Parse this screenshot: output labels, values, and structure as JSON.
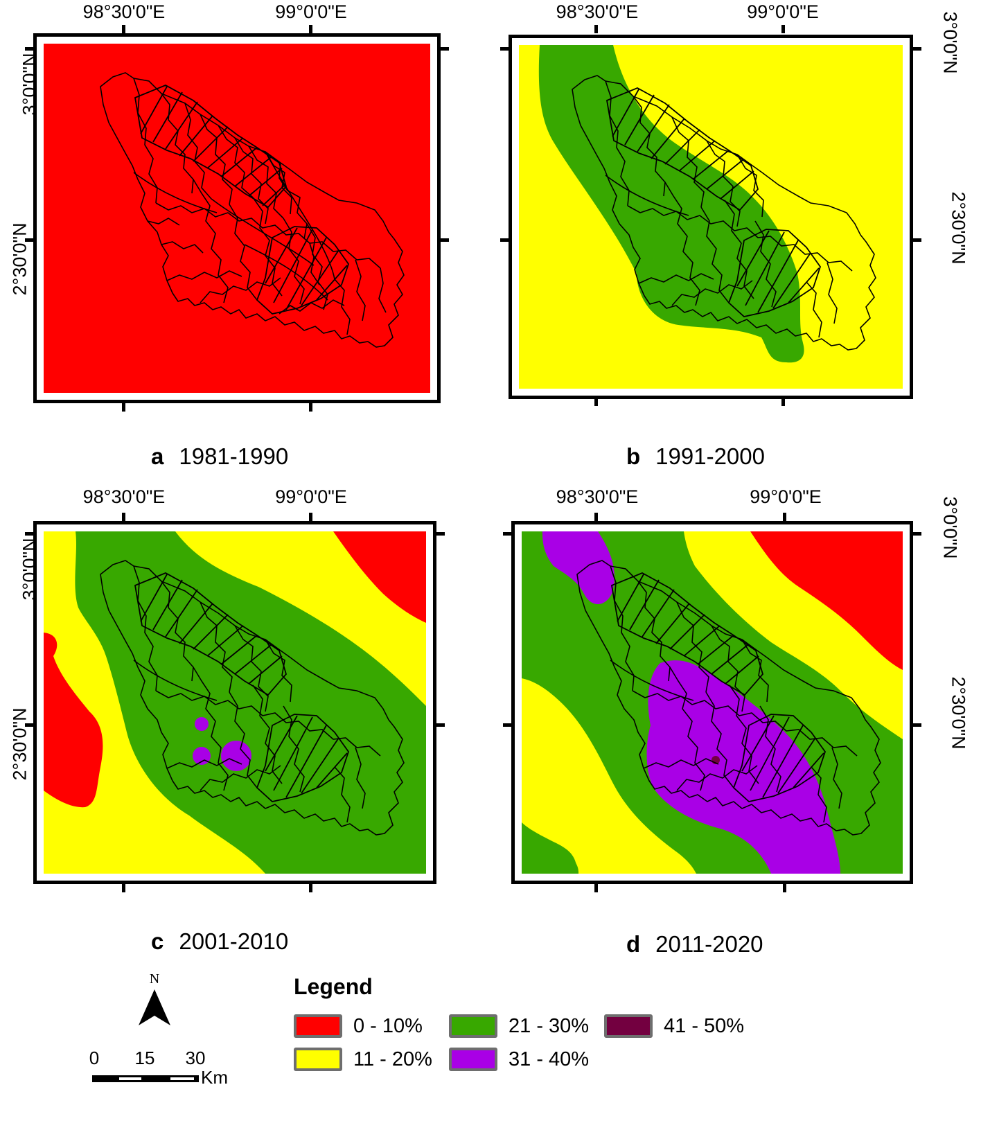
{
  "colors": {
    "class_0_10": "#ff0000",
    "class_11_20": "#ffff00",
    "class_21_30": "#38a800",
    "class_31_40": "#a900e6",
    "class_41_50": "#730040"
  },
  "axes": {
    "lon_left": "98°30'0\"E",
    "lon_right": "99°0'0\"E",
    "lat_top": "3°0'0\"N",
    "lat_bottom": "2°30'0\"N"
  },
  "panels": [
    {
      "letter": "a",
      "period": "1981-1990"
    },
    {
      "letter": "b",
      "period": "1991-2000"
    },
    {
      "letter": "c",
      "period": "2001-2010"
    },
    {
      "letter": "d",
      "period": "2011-2020"
    }
  ],
  "legend": {
    "title": "Legend",
    "items": [
      {
        "label": "0 - 10%",
        "color": "#ff0000"
      },
      {
        "label": "11 - 20%",
        "color": "#ffff00"
      },
      {
        "label": "21 - 30%",
        "color": "#38a800"
      },
      {
        "label": "31 - 40%",
        "color": "#a900e6"
      },
      {
        "label": "41 - 50%",
        "color": "#730040"
      }
    ]
  },
  "scale_bar": {
    "north": "N",
    "ticks": [
      "0",
      "15",
      "30"
    ],
    "unit": "Km"
  }
}
